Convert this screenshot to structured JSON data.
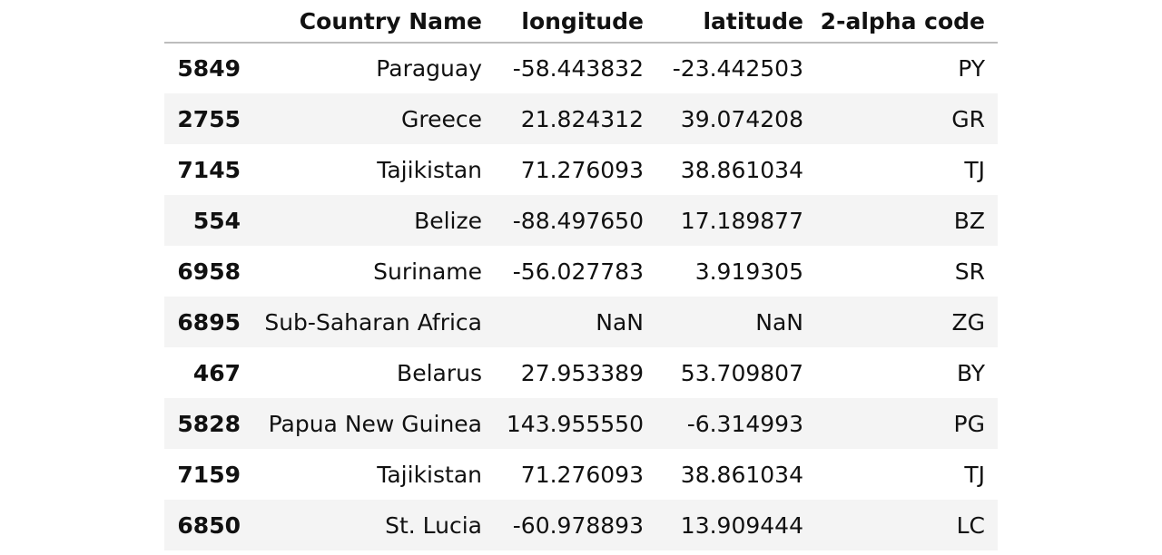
{
  "table": {
    "columns": [
      "",
      "Country Name",
      "longitude",
      "latitude",
      "2-alpha code"
    ],
    "rows": [
      {
        "index": "5849",
        "country": "Paraguay",
        "longitude": "-58.443832",
        "latitude": "-23.442503",
        "code": "PY"
      },
      {
        "index": "2755",
        "country": "Greece",
        "longitude": "21.824312",
        "latitude": "39.074208",
        "code": "GR"
      },
      {
        "index": "7145",
        "country": "Tajikistan",
        "longitude": "71.276093",
        "latitude": "38.861034",
        "code": "TJ"
      },
      {
        "index": "554",
        "country": "Belize",
        "longitude": "-88.497650",
        "latitude": "17.189877",
        "code": "BZ"
      },
      {
        "index": "6958",
        "country": "Suriname",
        "longitude": "-56.027783",
        "latitude": "3.919305",
        "code": "SR"
      },
      {
        "index": "6895",
        "country": "Sub-Saharan Africa",
        "longitude": "NaN",
        "latitude": "NaN",
        "code": "ZG"
      },
      {
        "index": "467",
        "country": "Belarus",
        "longitude": "27.953389",
        "latitude": "53.709807",
        "code": "BY"
      },
      {
        "index": "5828",
        "country": "Papua New Guinea",
        "longitude": "143.955550",
        "latitude": "-6.314993",
        "code": "PG"
      },
      {
        "index": "7159",
        "country": "Tajikistan",
        "longitude": "71.276093",
        "latitude": "38.861034",
        "code": "TJ"
      },
      {
        "index": "6850",
        "country": "St. Lucia",
        "longitude": "-60.978893",
        "latitude": "13.909444",
        "code": "LC"
      }
    ]
  }
}
